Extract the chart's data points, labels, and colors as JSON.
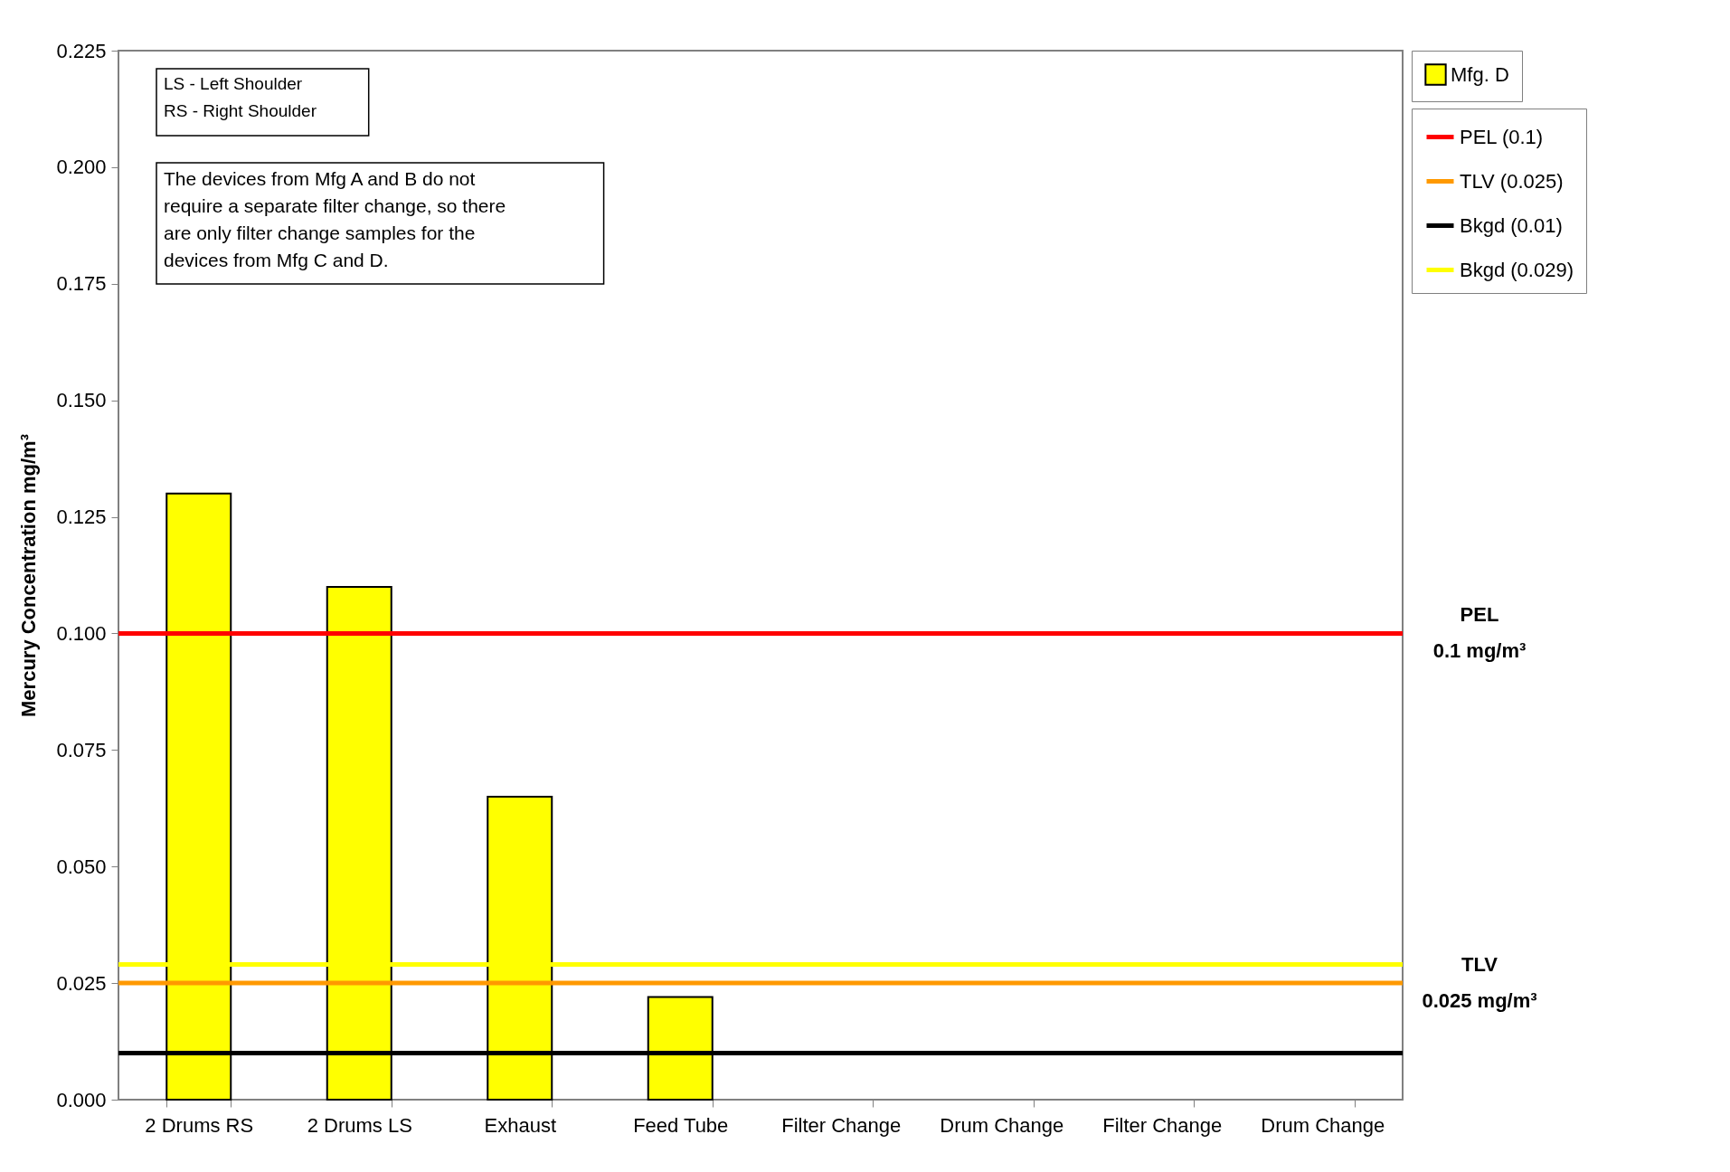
{
  "chart_data": {
    "type": "bar",
    "ylabel": "Mercury Concentration mg/m³",
    "categories": [
      "2 Drums RS",
      "2 Drums LS",
      "Exhaust",
      "Feed Tube",
      "Filter Change",
      "Drum Change",
      "Filter Change",
      "Drum Change"
    ],
    "series": [
      {
        "name": "Mfg. D",
        "color": "#ffff00",
        "values": [
          0.13,
          0.11,
          0.065,
          0.022,
          null,
          null,
          null,
          null
        ]
      }
    ],
    "ylim": [
      0,
      0.225
    ],
    "yticks": [
      {
        "value": 0,
        "label": "0.000"
      },
      {
        "value": 0.025,
        "label": "0.025"
      },
      {
        "value": 0.05,
        "label": "0.050"
      },
      {
        "value": 0.075,
        "label": "0.075"
      },
      {
        "value": 0.1,
        "label": "0.100"
      },
      {
        "value": 0.125,
        "label": "0.125"
      },
      {
        "value": 0.15,
        "label": "0.150"
      },
      {
        "value": 0.175,
        "label": "0.175"
      },
      {
        "value": 0.2,
        "label": "0.200"
      },
      {
        "value": 0.225,
        "label": "0.225"
      }
    ],
    "ref_lines": [
      {
        "axis": "y",
        "value": 0.1,
        "label": "PEL (0.1)",
        "color": "#ff0000"
      },
      {
        "axis": "y",
        "value": 0.025,
        "label": "TLV (0.025)",
        "color": "#ff9900"
      },
      {
        "axis": "y",
        "value": 0.01,
        "label": "Bkgd (0.01)",
        "color": "#000000"
      },
      {
        "axis": "y",
        "value": 0.029,
        "label": "Bkgd (0.029)",
        "color": "#ffff00"
      }
    ],
    "annotations": [
      "LS - Left Shoulder\nRS - Right Shoulder",
      "The devices from Mfg A and B do not\nrequire a separate filter change, so there\nare only filter change samples for the\ndevices from Mfg C and D.",
      "PEL\n0.1 mg/m³",
      "TLV\n0.025 mg/m³"
    ],
    "grid": false,
    "legend": "right"
  }
}
